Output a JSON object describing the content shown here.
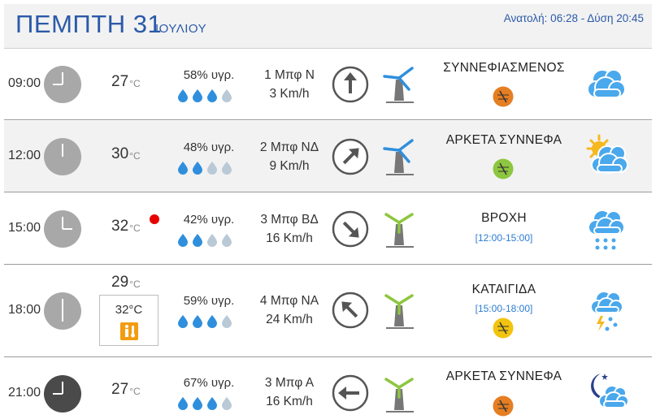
{
  "header": {
    "day": "ΠΕΜΠΤΗ 31",
    "month": "ΙΟΥΛΙΟΥ",
    "sun": "Ανατολή: 06:28  - Δύση 20:45"
  },
  "temp_unit": "°C",
  "rows": [
    {
      "time": "09:00",
      "temp": "27",
      "humidity": "58% υγρ.",
      "drops_filled": 3,
      "wind_bft": "1 Μπφ Ν",
      "wind_speed": "3 Km/h",
      "condition": "ΣΥΝΝΕΦΙΑΣΜΕΝΟΣ",
      "condition_range": "",
      "mosquito_color": "#e67e22",
      "weather_icon": "cloud-icon",
      "clock_style": "day"
    },
    {
      "time": "12:00",
      "temp": "30",
      "humidity": "48% υγρ.",
      "drops_filled": 2,
      "wind_bft": "2 Μπφ ΝΔ",
      "wind_speed": "9 Km/h",
      "condition": "ΑΡΚΕΤΑ ΣΥΝΝΕΦΑ",
      "condition_range": "",
      "mosquito_color": "#8dc63f",
      "weather_icon": "partly-sunny-icon",
      "clock_style": "day"
    },
    {
      "time": "15:00",
      "temp": "32",
      "humidity": "42% υγρ.",
      "drops_filled": 2,
      "wind_bft": "3 Μπφ ΒΔ",
      "wind_speed": "16 Km/h",
      "condition": "ΒΡΟΧΗ",
      "condition_range": "[12:00-15:00]",
      "mosquito_color": "",
      "weather_icon": "rain-cloud-icon",
      "clock_style": "day"
    },
    {
      "time": "18:00",
      "temp": "29",
      "feels_like": "32°C",
      "humidity": "59% υγρ.",
      "drops_filled": 3,
      "wind_bft": "4 Μπφ ΝΑ",
      "wind_speed": "24 Km/h",
      "condition": "ΚΑΤΑΙΓΙΔΑ",
      "condition_range": "[15:00-18:00]",
      "mosquito_color": "#f1c40f",
      "weather_icon": "thunderstorm-icon",
      "clock_style": "day"
    },
    {
      "time": "21:00",
      "temp": "27",
      "humidity": "67% υγρ.",
      "drops_filled": 3,
      "wind_bft": "3 Μπφ Α",
      "wind_speed": "16 Km/h",
      "condition": "ΑΡΚΕΤΑ ΣΥΝΝΕΦΑ",
      "condition_range": "",
      "mosquito_color": "#e67e22",
      "weather_icon": "night-cloud-icon",
      "clock_style": "night"
    }
  ]
}
